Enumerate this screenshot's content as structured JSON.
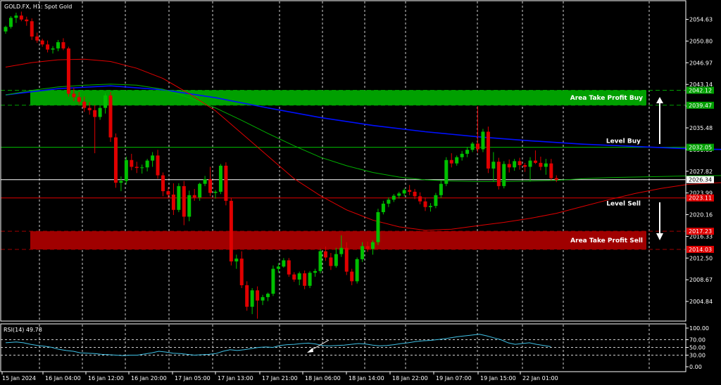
{
  "header": {
    "symbol_label": "GOLD.FX, H1:  Spot Gold"
  },
  "rsi": {
    "label": "RSI(14) 49.78",
    "levels": [
      100.0,
      70.0,
      50.0,
      30.0,
      0.0
    ],
    "level_labels": [
      "100.00",
      "70.00",
      "50.00",
      "30.00",
      "0.00"
    ],
    "dashed_levels": [
      70,
      50,
      30
    ]
  },
  "price_axis": {
    "min": 2001.5,
    "max": 2057.8,
    "ticks": [
      "2054.63",
      "2050.80",
      "2046.97",
      "2043.14",
      "2039.31",
      "2035.48",
      "2031.65",
      "2027.82",
      "2023.99",
      "2020.16",
      "2016.33",
      "2012.50",
      "2008.67",
      "2004.84"
    ]
  },
  "time_axis": {
    "labels": [
      "15 Jan 2024",
      "16 Jan 04:00",
      "16 Jan 12:00",
      "16 Jan 20:00",
      "17 Jan 05:00",
      "17 Jan 13:00",
      "17 Jan 21:00",
      "18 Jan 06:00",
      "18 Jan 14:00",
      "18 Jan 22:00",
      "19 Jan 07:00",
      "19 Jan 15:00",
      "22 Jan 01:00"
    ]
  },
  "levels": {
    "current": {
      "price": 2026.34,
      "label": "2026.34",
      "color": "#ffffff"
    },
    "level_buy": {
      "price": 2032.05,
      "label": "2032.05",
      "text": "Level Buy",
      "color": "#00c000"
    },
    "level_sell": {
      "price": 2023.11,
      "label": "2023.11",
      "text": "Level Sell",
      "color": "#e00000"
    },
    "area_buy": {
      "top": 2042.12,
      "bottom": 2039.47,
      "top_label": "2042.12",
      "bottom_label": "2039.47",
      "text": "Area Take Profit Buy",
      "color": "#00a000"
    },
    "area_sell": {
      "top": 2017.23,
      "bottom": 2014.03,
      "top_label": "2017.23",
      "bottom_label": "2014.03",
      "text": "Area Take Profit Sell",
      "color": "#a00000"
    }
  },
  "chart_data": {
    "type": "candlestick",
    "title": "GOLD.FX, H1:  Spot Gold",
    "ylim": [
      2001.5,
      2057.8
    ],
    "up_color": "#00c000",
    "down_color": "#e00000",
    "candles": [
      [
        2052.5,
        2053.5,
        2052.1,
        2053.3
      ],
      [
        2053.3,
        2055.2,
        2053.0,
        2054.9
      ],
      [
        2054.9,
        2055.8,
        2054.0,
        2055.3
      ],
      [
        2055.3,
        2056.0,
        2054.3,
        2054.6
      ],
      [
        2054.6,
        2055.1,
        2053.5,
        2054.3
      ],
      [
        2054.3,
        2054.8,
        2051.0,
        2051.6
      ],
      [
        2051.6,
        2052.3,
        2050.5,
        2050.9
      ],
      [
        2050.9,
        2051.2,
        2049.8,
        2050.2
      ],
      [
        2050.2,
        2050.9,
        2048.8,
        2049.3
      ],
      [
        2049.3,
        2049.9,
        2048.6,
        2049.5
      ],
      [
        2049.5,
        2051.0,
        2049.0,
        2050.6
      ],
      [
        2050.6,
        2051.3,
        2049.2,
        2049.5
      ],
      [
        2049.5,
        2049.8,
        2041.0,
        2041.5
      ],
      [
        2041.5,
        2042.6,
        2040.2,
        2040.9
      ],
      [
        2040.9,
        2041.8,
        2039.6,
        2040.1
      ],
      [
        2040.1,
        2041.0,
        2038.3,
        2039.0
      ],
      [
        2039.0,
        2040.0,
        2037.8,
        2038.6
      ],
      [
        2038.6,
        2039.5,
        2031.0,
        2037.4
      ],
      [
        2037.4,
        2039.4,
        2036.9,
        2039.0
      ],
      [
        2039.0,
        2041.6,
        2038.0,
        2041.2
      ],
      [
        2041.2,
        2041.8,
        2033.0,
        2033.8
      ],
      [
        2033.8,
        2034.5,
        2024.9,
        2025.8
      ],
      [
        2025.8,
        2026.9,
        2024.3,
        2026.1
      ],
      [
        2026.1,
        2030.4,
        2025.5,
        2029.8
      ],
      [
        2029.8,
        2030.9,
        2028.0,
        2028.6
      ],
      [
        2028.6,
        2029.5,
        2027.5,
        2028.4
      ],
      [
        2028.4,
        2029.0,
        2027.4,
        2028.5
      ],
      [
        2028.5,
        2030.0,
        2027.8,
        2029.7
      ],
      [
        2029.7,
        2031.2,
        2028.6,
        2030.6
      ],
      [
        2030.6,
        2031.6,
        2026.5,
        2027.1
      ],
      [
        2027.1,
        2027.6,
        2023.4,
        2024.3
      ],
      [
        2024.3,
        2025.0,
        2023.0,
        2023.7
      ],
      [
        2023.7,
        2025.7,
        2020.1,
        2021.0
      ],
      [
        2021.0,
        2025.7,
        2020.6,
        2025.2
      ],
      [
        2025.2,
        2026.1,
        2018.3,
        2019.8
      ],
      [
        2019.8,
        2024.4,
        2019.0,
        2023.6
      ],
      [
        2023.6,
        2024.7,
        2022.6,
        2023.2
      ],
      [
        2023.2,
        2025.8,
        2022.6,
        2025.6
      ],
      [
        2025.6,
        2027.0,
        2025.2,
        2026.4
      ],
      [
        2026.4,
        2028.6,
        2023.4,
        2024.0
      ],
      [
        2024.0,
        2024.5,
        2023.0,
        2024.2
      ],
      [
        2024.2,
        2029.1,
        2023.8,
        2028.8
      ],
      [
        2028.8,
        2029.4,
        2021.8,
        2022.6
      ],
      [
        2022.6,
        2023.1,
        2011.2,
        2011.9
      ],
      [
        2011.9,
        2013.1,
        2010.6,
        2012.4
      ],
      [
        2012.4,
        2013.7,
        2007.2,
        2007.7
      ],
      [
        2007.7,
        2008.4,
        2003.2,
        2003.9
      ],
      [
        2003.9,
        2007.2,
        2002.6,
        2006.8
      ],
      [
        2006.8,
        2007.5,
        2001.8,
        2005.0
      ],
      [
        2005.0,
        2006.0,
        2004.2,
        2005.6
      ],
      [
        2005.6,
        2006.4,
        2004.9,
        2006.2
      ],
      [
        2006.2,
        2011.2,
        2005.8,
        2010.6
      ],
      [
        2010.6,
        2011.6,
        2009.9,
        2011.0
      ],
      [
        2011.0,
        2012.5,
        2010.8,
        2012.1
      ],
      [
        2012.1,
        2012.5,
        2009.2,
        2009.6
      ],
      [
        2009.6,
        2010.0,
        2008.3,
        2008.7
      ],
      [
        2008.7,
        2010.1,
        2007.7,
        2009.8
      ],
      [
        2009.8,
        2010.3,
        2007.0,
        2007.6
      ],
      [
        2007.6,
        2010.2,
        2007.2,
        2009.9
      ],
      [
        2009.9,
        2010.6,
        2009.2,
        2010.2
      ],
      [
        2010.2,
        2014.1,
        2009.8,
        2013.7
      ],
      [
        2013.7,
        2014.5,
        2012.0,
        2012.6
      ],
      [
        2012.6,
        2013.4,
        2010.4,
        2011.1
      ],
      [
        2011.1,
        2014.3,
        2010.8,
        2013.2
      ],
      [
        2013.2,
        2016.5,
        2012.7,
        2014.3
      ],
      [
        2014.3,
        2015.3,
        2009.5,
        2010.1
      ],
      [
        2010.1,
        2010.6,
        2007.7,
        2008.4
      ],
      [
        2008.4,
        2012.6,
        2008.0,
        2012.3
      ],
      [
        2012.3,
        2015.3,
        2011.8,
        2014.6
      ],
      [
        2014.6,
        2015.4,
        2013.6,
        2014.1
      ],
      [
        2014.1,
        2015.6,
        2013.1,
        2015.3
      ],
      [
        2015.3,
        2021.2,
        2014.8,
        2020.6
      ],
      [
        2020.6,
        2022.6,
        2020.2,
        2022.1
      ],
      [
        2022.1,
        2023.2,
        2021.5,
        2022.8
      ],
      [
        2022.8,
        2023.8,
        2022.4,
        2023.5
      ],
      [
        2023.5,
        2024.2,
        2023.0,
        2023.9
      ],
      [
        2023.9,
        2024.8,
        2023.4,
        2024.5
      ],
      [
        2024.5,
        2025.4,
        2023.6,
        2024.2
      ],
      [
        2024.2,
        2024.7,
        2022.9,
        2023.4
      ],
      [
        2023.4,
        2024.1,
        2022.0,
        2022.5
      ],
      [
        2022.5,
        2023.2,
        2020.8,
        2021.5
      ],
      [
        2021.5,
        2022.2,
        2020.7,
        2021.7
      ],
      [
        2021.7,
        2024.0,
        2021.3,
        2023.6
      ],
      [
        2023.6,
        2026.1,
        2023.1,
        2025.6
      ],
      [
        2025.6,
        2030.3,
        2025.2,
        2029.8
      ],
      [
        2029.8,
        2031.0,
        2028.5,
        2029.2
      ],
      [
        2029.2,
        2030.6,
        2028.8,
        2030.3
      ],
      [
        2030.3,
        2031.4,
        2029.7,
        2030.9
      ],
      [
        2030.9,
        2032.1,
        2030.3,
        2031.6
      ],
      [
        2031.6,
        2033.0,
        2031.2,
        2032.7
      ],
      [
        2032.7,
        2039.3,
        2031.1,
        2031.7
      ],
      [
        2031.7,
        2035.3,
        2031.2,
        2034.8
      ],
      [
        2034.8,
        2035.7,
        2027.5,
        2028.3
      ],
      [
        2028.3,
        2031.2,
        2026.0,
        2029.5
      ],
      [
        2029.5,
        2030.2,
        2024.6,
        2025.2
      ],
      [
        2025.2,
        2029.6,
        2024.8,
        2029.1
      ],
      [
        2029.1,
        2029.9,
        2027.6,
        2028.5
      ],
      [
        2028.5,
        2030.0,
        2027.9,
        2029.6
      ],
      [
        2029.6,
        2030.2,
        2028.1,
        2028.9
      ],
      [
        2028.9,
        2029.3,
        2027.7,
        2028.6
      ],
      [
        2028.6,
        2030.3,
        2026.0,
        2029.7
      ],
      [
        2029.7,
        2031.5,
        2029.1,
        2029.3
      ],
      [
        2029.3,
        2030.4,
        2028.0,
        2028.6
      ],
      [
        2028.6,
        2030.0,
        2027.2,
        2029.2
      ],
      [
        2029.2,
        2030.0,
        2026.2,
        2026.6
      ],
      [
        2026.6,
        2027.1,
        2025.9,
        2026.3
      ]
    ],
    "series": [
      {
        "color": "#0010ff",
        "width": 1.6,
        "points": [
          [
            0,
            2041.3
          ],
          [
            10,
            2042.4
          ],
          [
            20,
            2042.9
          ],
          [
            30,
            2042.2
          ],
          [
            40,
            2040.8
          ],
          [
            50,
            2039.0
          ],
          [
            60,
            2037.3
          ],
          [
            70,
            2035.9
          ],
          [
            80,
            2034.8
          ],
          [
            90,
            2033.9
          ],
          [
            100,
            2033.2
          ],
          [
            110,
            2032.6
          ],
          [
            120,
            2032.2
          ],
          [
            130,
            2031.8
          ],
          [
            140,
            2031.6
          ],
          [
            150,
            2031.4
          ],
          [
            160,
            2031.3
          ]
        ]
      },
      {
        "color": "#00b000",
        "width": 1,
        "points": [
          [
            0,
            2041.3
          ],
          [
            5,
            2042.1
          ],
          [
            10,
            2042.7
          ],
          [
            15,
            2043.0
          ],
          [
            20,
            2043.2
          ],
          [
            25,
            2043.0
          ],
          [
            30,
            2042.3
          ],
          [
            35,
            2040.8
          ],
          [
            40,
            2039.0
          ],
          [
            45,
            2036.8
          ],
          [
            50,
            2034.5
          ],
          [
            55,
            2032.3
          ],
          [
            60,
            2030.3
          ],
          [
            65,
            2028.8
          ],
          [
            70,
            2027.6
          ],
          [
            75,
            2026.8
          ],
          [
            80,
            2026.3
          ],
          [
            85,
            2026.1
          ],
          [
            90,
            2026.0
          ],
          [
            95,
            2026.0
          ],
          [
            100,
            2026.1
          ],
          [
            105,
            2026.2
          ],
          [
            110,
            2026.5
          ],
          [
            115,
            2026.7
          ],
          [
            120,
            2026.8
          ],
          [
            125,
            2026.9
          ],
          [
            130,
            2027.0
          ],
          [
            140,
            2027.1
          ],
          [
            150,
            2027.1
          ],
          [
            160,
            2027.2
          ]
        ]
      },
      {
        "color": "#e00000",
        "width": 1,
        "points": [
          [
            0,
            2046.2
          ],
          [
            5,
            2047.0
          ],
          [
            10,
            2047.5
          ],
          [
            15,
            2047.6
          ],
          [
            20,
            2047.2
          ],
          [
            25,
            2046.0
          ],
          [
            30,
            2044.2
          ],
          [
            35,
            2041.5
          ],
          [
            40,
            2038.5
          ],
          [
            45,
            2034.5
          ],
          [
            50,
            2030.5
          ],
          [
            55,
            2026.5
          ],
          [
            60,
            2023.5
          ],
          [
            65,
            2021.0
          ],
          [
            70,
            2019.2
          ],
          [
            75,
            2018.0
          ],
          [
            80,
            2017.4
          ],
          [
            85,
            2017.6
          ],
          [
            90,
            2018.2
          ],
          [
            95,
            2018.8
          ],
          [
            100,
            2019.5
          ],
          [
            105,
            2020.4
          ],
          [
            110,
            2021.6
          ],
          [
            115,
            2022.8
          ],
          [
            120,
            2023.9
          ],
          [
            125,
            2024.8
          ],
          [
            130,
            2025.5
          ],
          [
            140,
            2026.0
          ],
          [
            150,
            2026.3
          ],
          [
            160,
            2026.5
          ]
        ]
      }
    ],
    "rsi_series": [
      [
        0,
        62
      ],
      [
        6,
        64
      ],
      [
        10,
        62
      ],
      [
        14,
        58
      ],
      [
        18,
        55
      ],
      [
        22,
        53
      ],
      [
        26,
        50
      ],
      [
        30,
        45
      ],
      [
        34,
        42
      ],
      [
        38,
        40
      ],
      [
        42,
        36
      ],
      [
        46,
        35
      ],
      [
        50,
        34
      ],
      [
        54,
        32
      ],
      [
        58,
        31
      ],
      [
        62,
        30
      ],
      [
        66,
        29
      ],
      [
        70,
        30
      ],
      [
        74,
        30
      ],
      [
        78,
        33
      ],
      [
        82,
        36
      ],
      [
        86,
        40
      ],
      [
        90,
        38
      ],
      [
        94,
        35
      ],
      [
        98,
        34
      ],
      [
        102,
        32
      ],
      [
        106,
        30
      ],
      [
        110,
        31
      ],
      [
        114,
        32
      ],
      [
        118,
        34
      ],
      [
        122,
        40
      ],
      [
        126,
        44
      ],
      [
        130,
        42
      ],
      [
        134,
        44
      ],
      [
        138,
        47
      ],
      [
        142,
        50
      ],
      [
        146,
        51
      ],
      [
        150,
        50
      ],
      [
        154,
        55
      ],
      [
        158,
        57
      ],
      [
        162,
        58
      ],
      [
        166,
        60
      ],
      [
        170,
        61
      ],
      [
        174,
        59
      ],
      [
        178,
        55
      ],
      [
        182,
        54
      ],
      [
        186,
        55
      ],
      [
        190,
        56
      ],
      [
        194,
        58
      ],
      [
        198,
        60
      ],
      [
        202,
        59
      ],
      [
        206,
        56
      ],
      [
        210,
        54
      ],
      [
        214,
        55
      ],
      [
        218,
        57
      ],
      [
        222,
        60
      ],
      [
        226,
        62
      ],
      [
        230,
        65
      ],
      [
        234,
        67
      ],
      [
        238,
        68
      ],
      [
        242,
        70
      ],
      [
        246,
        72
      ],
      [
        250,
        75
      ],
      [
        254,
        78
      ],
      [
        258,
        80
      ],
      [
        262,
        82
      ],
      [
        266,
        84
      ],
      [
        270,
        80
      ],
      [
        274,
        75
      ],
      [
        278,
        70
      ],
      [
        282,
        62
      ],
      [
        286,
        58
      ],
      [
        290,
        60
      ],
      [
        294,
        62
      ],
      [
        298,
        58
      ],
      [
        302,
        55
      ],
      [
        306,
        52
      ]
    ]
  }
}
